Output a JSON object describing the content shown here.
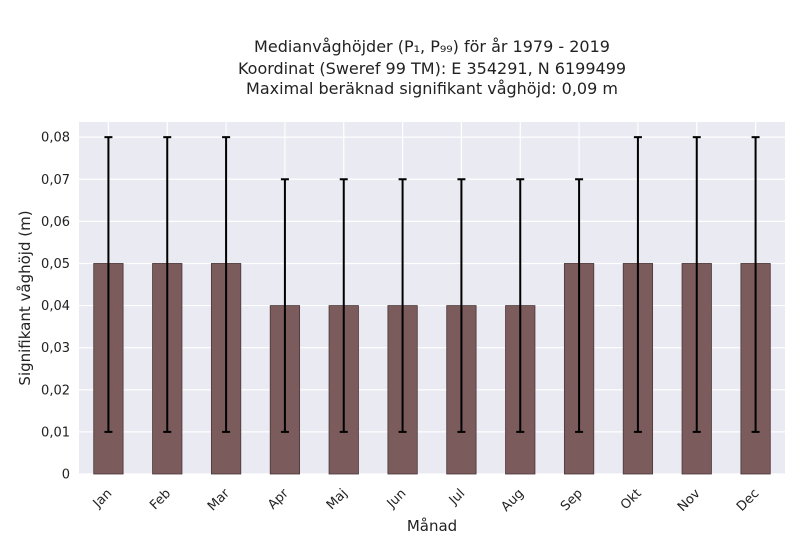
{
  "chart_data": {
    "type": "bar",
    "title_lines": [
      "Medianvåghöjder (P₁, P₉₉) för år 1979 - 2019",
      "Koordinat (Sweref 99 TM): E 354291, N 6199499",
      "Maximal beräknad signifikant våghöjd: 0,09 m"
    ],
    "xlabel": "Månad",
    "ylabel": "Signifikant våghöjd (m)",
    "categories": [
      "Jan",
      "Feb",
      "Mar",
      "Apr",
      "Maj",
      "Jun",
      "Jul",
      "Aug",
      "Sep",
      "Okt",
      "Nov",
      "Dec"
    ],
    "values": [
      0.05,
      0.05,
      0.05,
      0.04,
      0.04,
      0.04,
      0.04,
      0.04,
      0.05,
      0.05,
      0.05,
      0.05
    ],
    "error_low": [
      0.01,
      0.01,
      0.01,
      0.01,
      0.01,
      0.01,
      0.01,
      0.01,
      0.01,
      0.01,
      0.01,
      0.01
    ],
    "error_high": [
      0.08,
      0.08,
      0.08,
      0.07,
      0.07,
      0.07,
      0.07,
      0.07,
      0.07,
      0.08,
      0.08,
      0.08
    ],
    "yticks": [
      "0",
      "0,01",
      "0,02",
      "0,03",
      "0,04",
      "0,05",
      "0,06",
      "0,07",
      "0,08"
    ],
    "ytick_values": [
      0,
      0.01,
      0.02,
      0.03,
      0.04,
      0.05,
      0.06,
      0.07,
      0.08
    ],
    "ylim": [
      0,
      0.0836
    ],
    "grid": true,
    "colors": {
      "bar": "#7b5b5c",
      "bar_edge": "#4a3637",
      "error": "#000000",
      "plot_bg": "#eaeaf2",
      "grid": "#ffffff"
    }
  }
}
